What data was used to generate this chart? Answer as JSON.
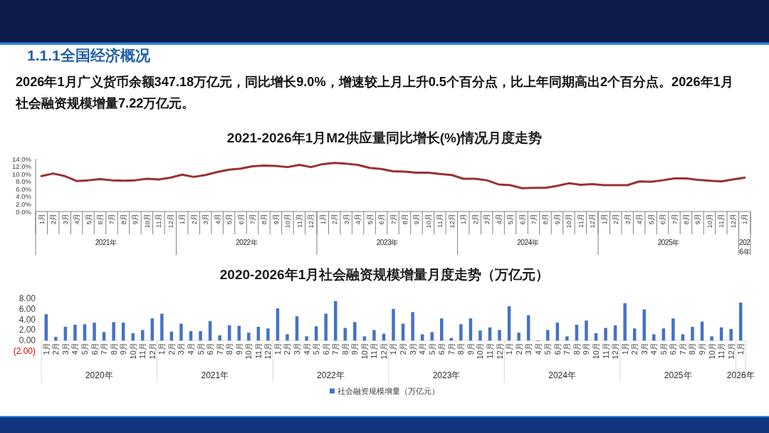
{
  "chart_data": [
    {
      "type": "other",
      "title": "1.1.1全国经济概况",
      "annotations": [
        "2026年1月广义货币余额347.18万亿元，同比增长9.0%，增速较上月上升0.5个百分点，比上年同期高出2个百分点。2026年1月社会融资规模增量7.22万亿元。"
      ]
    },
    {
      "type": "line",
      "title": "2021-2026年1月M2供应量同比增长(%)情况月度走势",
      "categories": [
        "1月",
        "2月",
        "3月",
        "4月",
        "5月",
        "6月",
        "7月",
        "8月",
        "9月",
        "10月",
        "11月",
        "12月",
        "1月",
        "2月",
        "3月",
        "4月",
        "5月",
        "6月",
        "7月",
        "8月",
        "9月",
        "10月",
        "11月",
        "12月",
        "1月",
        "2月",
        "3月",
        "4月",
        "5月",
        "6月",
        "7月",
        "8月",
        "9月",
        "10月",
        "11月",
        "12月",
        "1月",
        "2月",
        "3月",
        "4月",
        "5月",
        "6月",
        "7月",
        "8月",
        "9月",
        "10月",
        "11月",
        "12月",
        "1月",
        "2月",
        "3月",
        "4月",
        "5月",
        "6月",
        "7月",
        "8月",
        "9月",
        "10月",
        "11月",
        "12月",
        "1月"
      ],
      "series": [
        {
          "color": "#9b3034",
          "values": [
            9.4,
            10.1,
            9.4,
            8.1,
            8.3,
            8.6,
            8.3,
            8.2,
            8.3,
            8.7,
            8.5,
            9.0,
            9.8,
            9.2,
            9.7,
            10.5,
            11.1,
            11.4,
            12.0,
            12.2,
            12.1,
            11.8,
            12.4,
            11.8,
            12.6,
            12.9,
            12.7,
            12.4,
            11.6,
            11.3,
            10.7,
            10.6,
            10.3,
            10.3,
            10.0,
            9.7,
            8.7,
            8.7,
            8.3,
            7.2,
            7.0,
            6.2,
            6.3,
            6.3,
            6.8,
            7.5,
            7.1,
            7.3,
            7.0,
            7.0,
            7.0,
            8.0,
            7.9,
            8.3,
            8.8,
            8.8,
            8.4,
            8.2,
            8.0,
            8.5,
            9.0
          ]
        }
      ],
      "ylim": [
        0,
        14
      ],
      "yticks": [
        {
          "value": 0,
          "label": "0.0%"
        },
        {
          "value": 2,
          "label": "2.0%"
        },
        {
          "value": 4,
          "label": "4.0%"
        },
        {
          "value": 6,
          "label": "6.0%"
        },
        {
          "value": 8,
          "label": "8.0%"
        },
        {
          "value": 10,
          "label": "10.0%"
        },
        {
          "value": 12,
          "label": "12.0%"
        },
        {
          "value": 14,
          "label": "14.0%"
        }
      ],
      "annotations": [
        "2021年",
        "2022年",
        "2023年",
        "2024年",
        "2025年",
        "2026年"
      ]
    },
    {
      "type": "bar",
      "title": "2020-2026年1月社会融资规模增量月度走势（万亿元）",
      "categories": [
        "1月",
        "2月",
        "3月",
        "4月",
        "5月",
        "6月",
        "7月",
        "8月",
        "9月",
        "10月",
        "11月",
        "12月",
        "1月",
        "2月",
        "3月",
        "4月",
        "5月",
        "6月",
        "7月",
        "8月",
        "9月",
        "10月",
        "11月",
        "12月",
        "1月",
        "2月",
        "3月",
        "4月",
        "5月",
        "6月",
        "7月",
        "8月",
        "9月",
        "10月",
        "11月",
        "12月",
        "1月",
        "2月",
        "3月",
        "4月",
        "5月",
        "6月",
        "7月",
        "8月",
        "9月",
        "10月",
        "11月",
        "12月",
        "1月",
        "2月",
        "3月",
        "4月",
        "5月",
        "6月",
        "7月",
        "8月",
        "9月",
        "10月",
        "11月",
        "12月",
        "1月",
        "2月",
        "3月",
        "4月",
        "5月",
        "6月",
        "7月",
        "8月",
        "9月",
        "10月",
        "11月",
        "12月",
        "1月"
      ],
      "series": [
        {
          "name": "社会融资规模增量（万亿元）",
          "color": "#4472c4",
          "values": [
            5.0,
            0.7,
            2.6,
            3.0,
            3.1,
            3.4,
            1.6,
            3.5,
            3.4,
            1.4,
            2.0,
            4.2,
            5.1,
            1.7,
            3.2,
            1.8,
            1.8,
            3.7,
            1.0,
            2.9,
            2.8,
            1.5,
            2.6,
            2.3,
            6.1,
            1.2,
            4.6,
            0.8,
            2.7,
            5.1,
            7.5,
            2.4,
            3.5,
            0.8,
            2.0,
            1.3,
            6.0,
            3.2,
            5.4,
            1.2,
            1.6,
            4.2,
            0.5,
            3.1,
            4.2,
            1.9,
            2.5,
            2.0,
            6.5,
            1.5,
            4.8,
            -0.1,
            2.0,
            3.4,
            0.8,
            3.0,
            3.8,
            1.4,
            2.4,
            2.9,
            7.1,
            2.3,
            5.9,
            1.2,
            2.3,
            4.2,
            1.2,
            2.6,
            3.6,
            0.8,
            2.5,
            2.2,
            7.2
          ]
        }
      ],
      "ylim": [
        -2,
        8
      ],
      "yticks": [
        {
          "value": -2,
          "label": "(2.00)"
        },
        {
          "value": 0,
          "label": "0.00"
        },
        {
          "value": 2,
          "label": "2.00"
        },
        {
          "value": 4,
          "label": "4.00"
        },
        {
          "value": 6,
          "label": "6.00"
        },
        {
          "value": 8,
          "label": "8.00"
        }
      ],
      "legend": "bottom",
      "annotations": [
        "2020年",
        "2021年",
        "2022年",
        "2023年",
        "2024年",
        "2025年",
        "2026年"
      ]
    }
  ]
}
